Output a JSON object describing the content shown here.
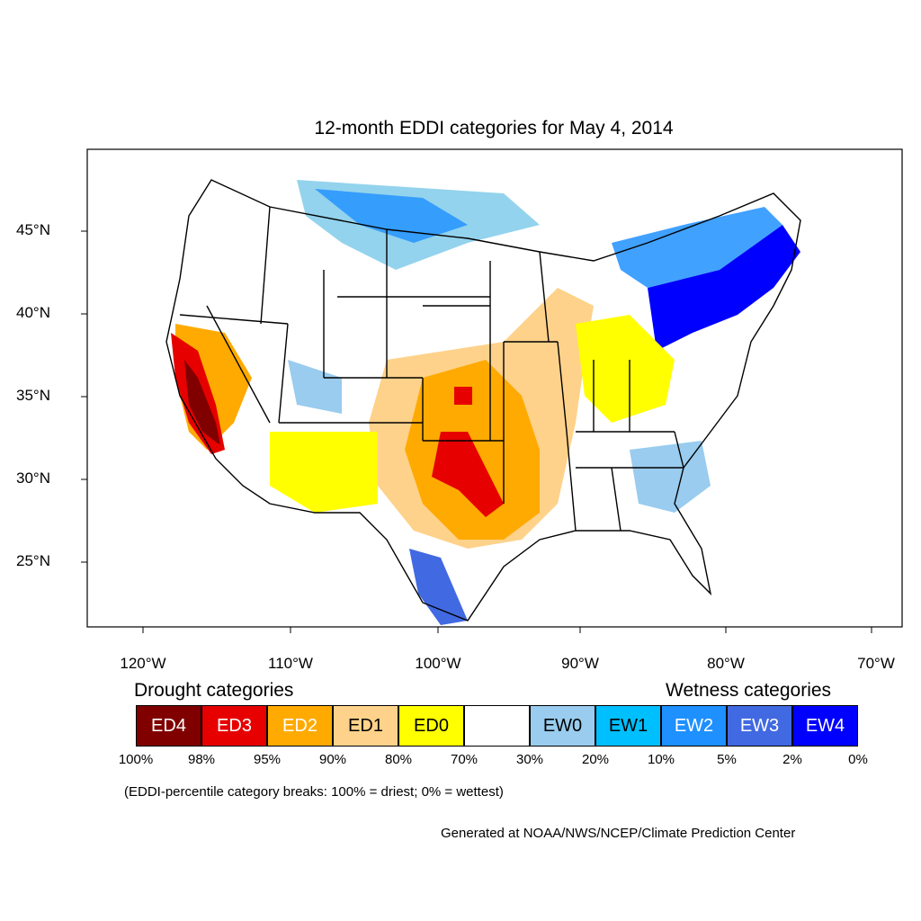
{
  "title": "12-month EDDI categories for May 4, 2014",
  "map": {
    "lat_labels": [
      "45°N",
      "40°N",
      "35°N",
      "30°N",
      "25°N"
    ],
    "lon_labels": [
      "120°W",
      "110°W",
      "100°W",
      "90°W",
      "80°W",
      "70°W"
    ]
  },
  "legend": {
    "drought_heading": "Drought categories",
    "wetness_heading": "Wetness categories",
    "categories": [
      {
        "label": "ED4",
        "color": "#800000"
      },
      {
        "label": "ED3",
        "color": "#e60000"
      },
      {
        "label": "ED2",
        "color": "#ffaa00"
      },
      {
        "label": "ED1",
        "color": "#fed28a"
      },
      {
        "label": "ED0",
        "color": "#ffff00"
      },
      {
        "label": "",
        "color": "#ffffff"
      },
      {
        "label": "EW0",
        "color": "#99ccee"
      },
      {
        "label": "EW1",
        "color": "#00bfff"
      },
      {
        "label": "EW2",
        "color": "#1e90ff"
      },
      {
        "label": "EW3",
        "color": "#4169e1"
      },
      {
        "label": "EW4",
        "color": "#0000ff"
      }
    ],
    "percentiles": [
      "100%",
      "98%",
      "95%",
      "90%",
      "80%",
      "70%",
      "30%",
      "20%",
      "10%",
      "5%",
      "2%",
      "0%"
    ],
    "note": "(EDDI-percentile category breaks: 100% = driest; 0% = wettest)"
  },
  "credit": "Generated at NOAA/NWS/NCEP/Climate Prediction Center"
}
